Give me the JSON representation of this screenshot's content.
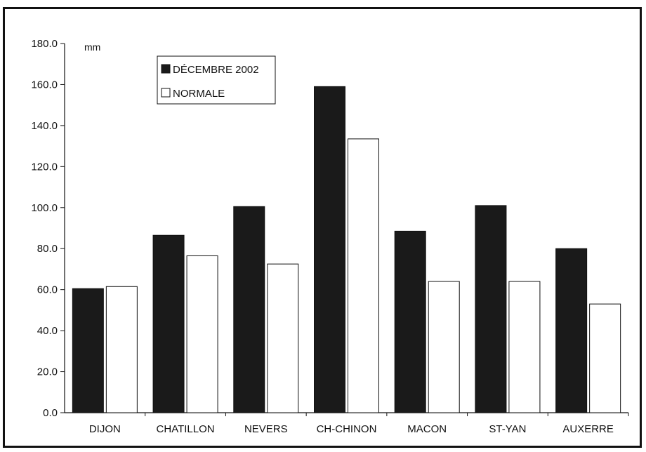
{
  "chart_data": {
    "type": "bar",
    "unit_label": "mm",
    "categories": [
      "DIJON",
      "CHATILLON",
      "NEVERS",
      "CH-CHINON",
      "MACON",
      "ST-YAN",
      "AUXERRE"
    ],
    "series": [
      {
        "name": "DÉCEMBRE 2002",
        "values": [
          60.5,
          86.5,
          100.5,
          159.0,
          88.5,
          101.0,
          80.0
        ],
        "color": "#1a1a1a"
      },
      {
        "name": "NORMALE",
        "values": [
          61.5,
          76.5,
          72.5,
          133.5,
          64.0,
          64.0,
          53.0
        ],
        "color": "#ffffff"
      }
    ],
    "y_ticks": [
      "0.0",
      "20.0",
      "40.0",
      "60.0",
      "80.0",
      "100.0",
      "120.0",
      "140.0",
      "160.0",
      "180.0"
    ],
    "ylim": [
      0,
      180
    ],
    "grid": false,
    "legend_position": "top-left"
  }
}
